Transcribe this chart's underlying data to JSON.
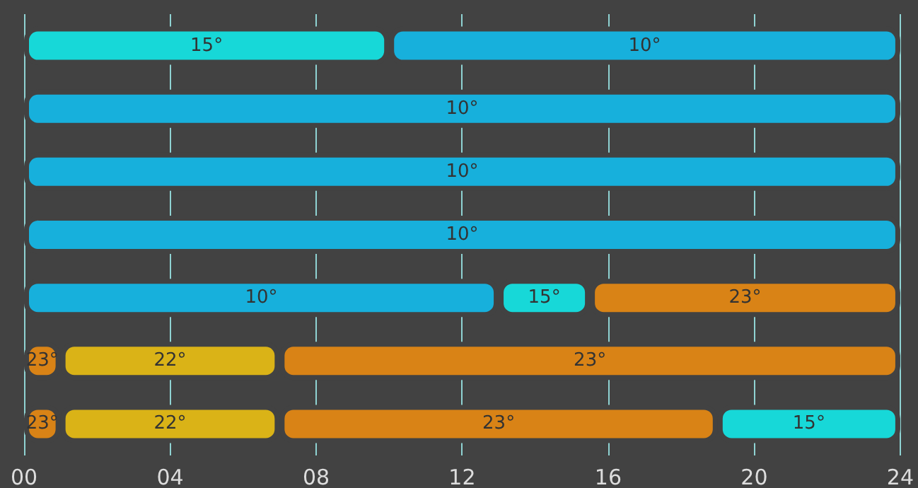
{
  "chart_data": {
    "type": "bar",
    "orientation": "horizontal",
    "stacked": true,
    "categories": [
      null,
      null,
      null,
      null,
      null,
      null,
      null
    ],
    "series": [
      {
        "values": [
          10,
          24,
          24,
          24,
          13,
          1,
          1
        ],
        "colors": [
          "#17d8d8",
          "#17b0dc",
          "#17b0dc",
          "#17b0dc",
          "#17b0dc",
          "#d98316",
          "#d98316"
        ]
      },
      {
        "values": [
          14,
          null,
          null,
          null,
          2.5,
          6,
          6
        ],
        "colors": [
          "#17b0dc",
          null,
          null,
          null,
          "#17d8d8",
          "#dab317",
          "#dab317"
        ]
      },
      {
        "values": [
          null,
          null,
          null,
          null,
          8.5,
          17,
          12
        ],
        "colors": [
          null,
          null,
          null,
          null,
          "#d98316",
          "#d98316",
          "#d98316"
        ]
      },
      {
        "values": [
          null,
          null,
          null,
          null,
          null,
          null,
          5
        ],
        "colors": [
          null,
          null,
          null,
          null,
          null,
          null,
          "#17d8d8"
        ]
      }
    ],
    "annotations": [
      "15°",
      "10°",
      "10°",
      "10°",
      "10°",
      "10°",
      "15°",
      "23°",
      "23°",
      "22°",
      "23°",
      "23°",
      "22°",
      "23°",
      "15°"
    ],
    "xlim": [
      0,
      24
    ],
    "xticks": [
      {
        "value": 0,
        "label": "00"
      },
      {
        "value": 4,
        "label": "04"
      },
      {
        "value": 8,
        "label": "08"
      },
      {
        "value": 12,
        "label": "12"
      },
      {
        "value": 16,
        "label": "16"
      },
      {
        "value": 20,
        "label": "20"
      },
      {
        "value": 24,
        "label": "24"
      }
    ],
    "grid": "x"
  }
}
